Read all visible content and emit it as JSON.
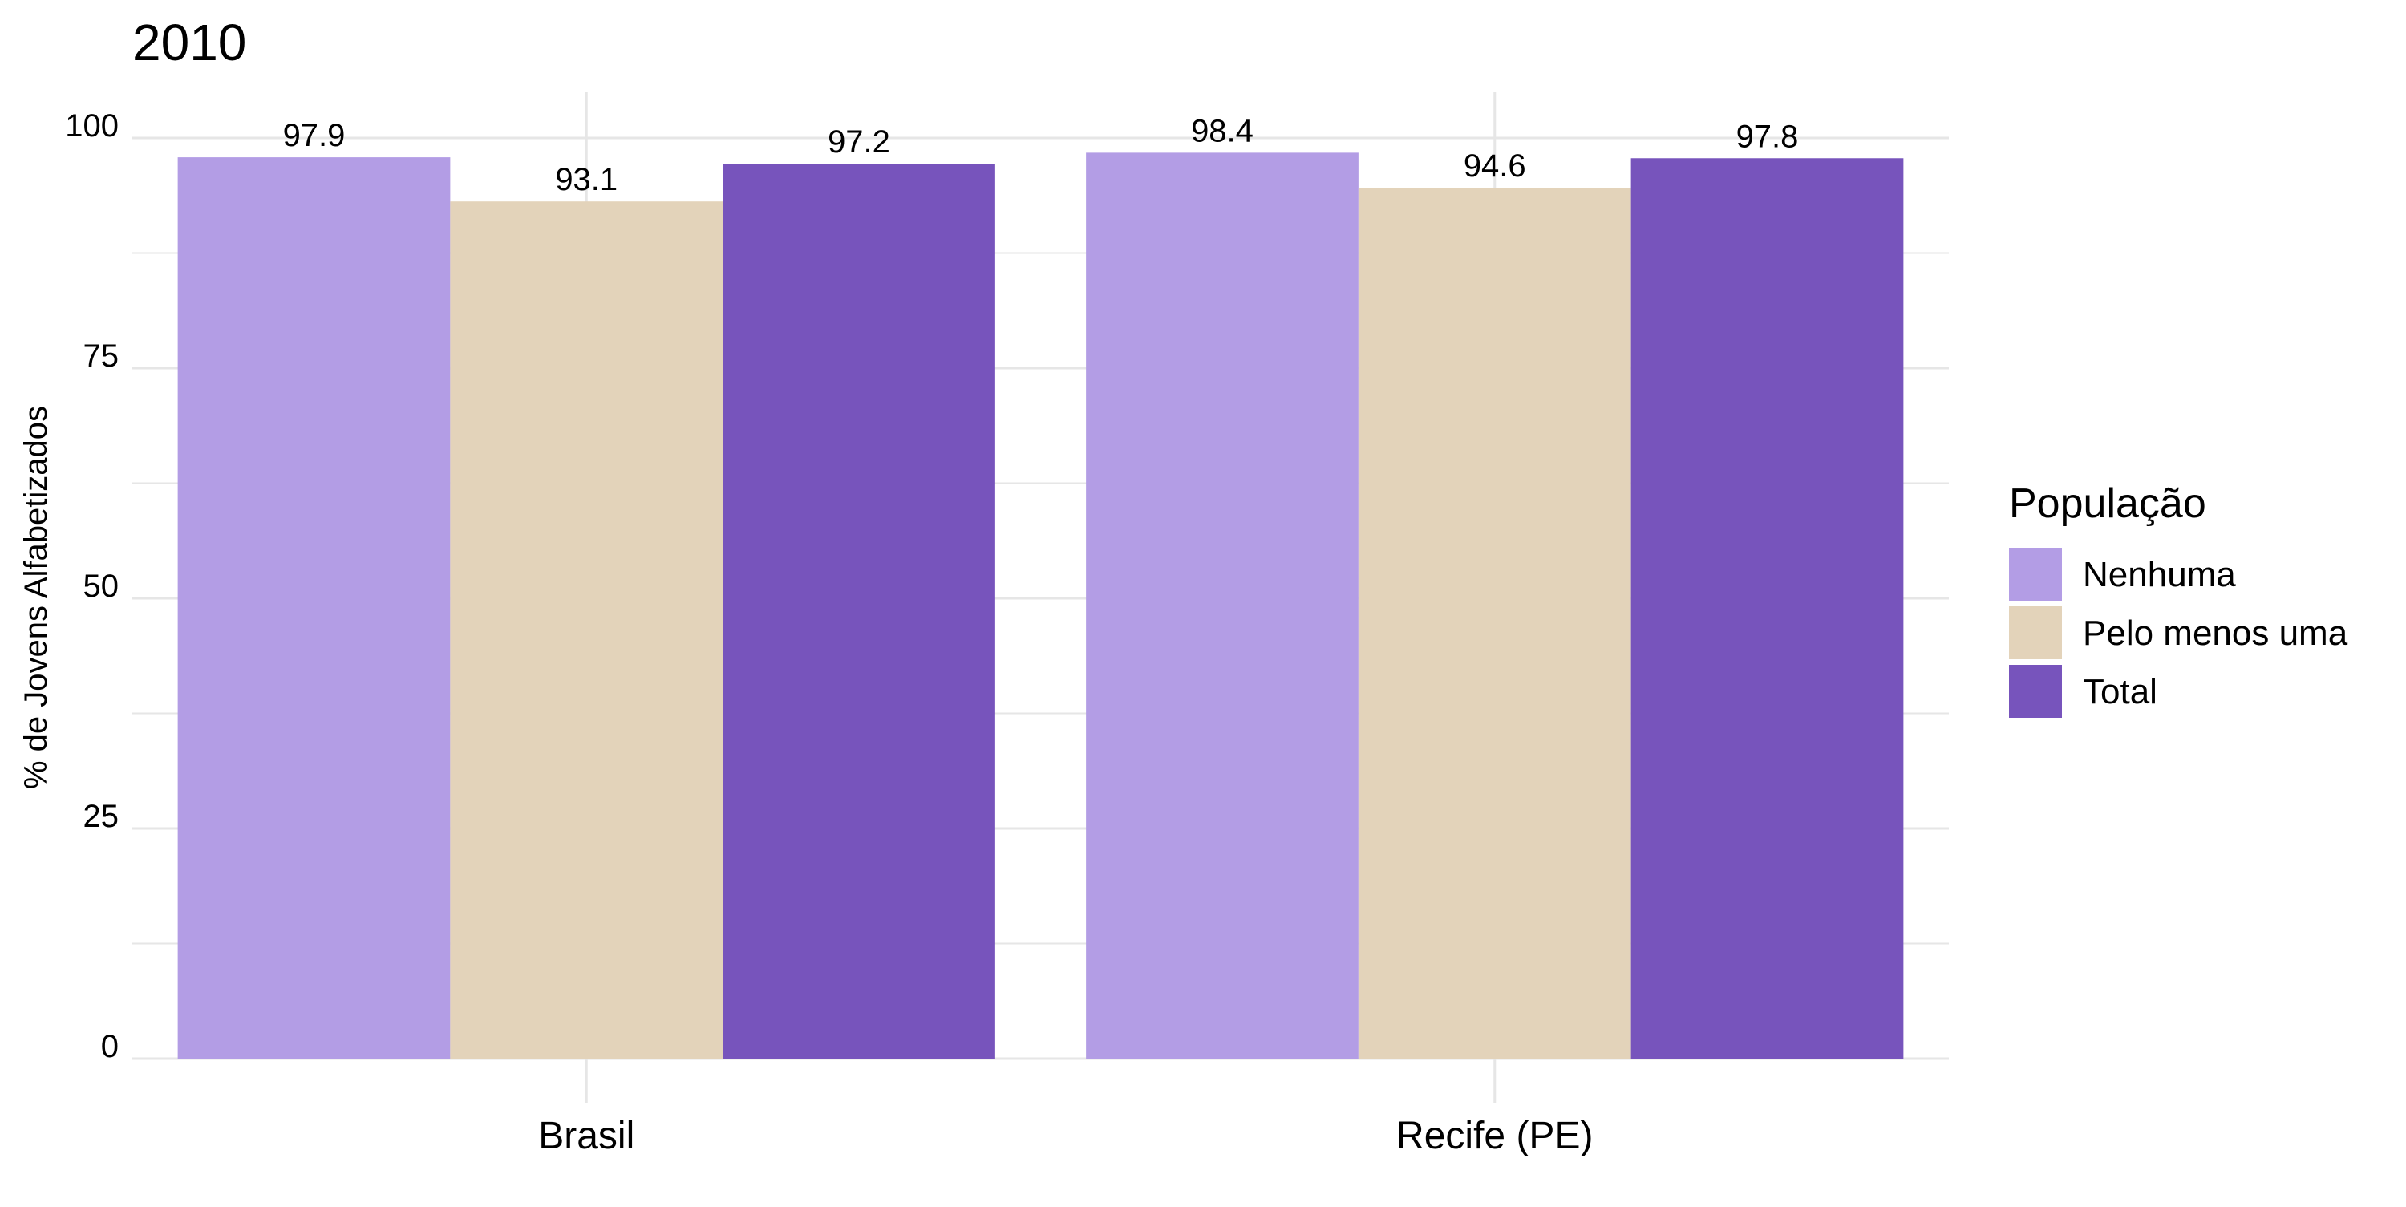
{
  "chart_data": {
    "type": "bar",
    "title": "2010",
    "xlabel": "",
    "ylabel": "% de Jovens Alfabetizados",
    "categories": [
      "Brasil",
      "Recife (PE)"
    ],
    "series": [
      {
        "name": "Nenhuma",
        "values": [
          97.9,
          98.4
        ],
        "color": "#B39DE5"
      },
      {
        "name": "Pelo menos uma",
        "values": [
          93.1,
          94.6
        ],
        "color": "#E3D3BA"
      },
      {
        "name": "Total",
        "values": [
          97.2,
          97.8
        ],
        "color": "#7754BC"
      }
    ],
    "data_labels": [
      [
        "97.9",
        "98.4"
      ],
      [
        "93.1",
        "94.6"
      ],
      [
        "97.2",
        "97.8"
      ]
    ],
    "ylim": [
      0,
      100
    ],
    "yticks": [
      0,
      25,
      50,
      75,
      100
    ],
    "ytick_labels": [
      "0",
      "25",
      "50",
      "75",
      "100"
    ],
    "grid": true,
    "legend": {
      "title": "População",
      "position": "right"
    },
    "colors": {
      "grid": "#E6E6E6",
      "text": "#000000",
      "background": "#FFFFFF"
    }
  }
}
